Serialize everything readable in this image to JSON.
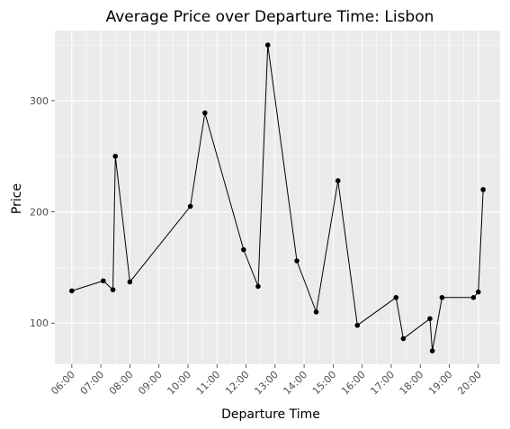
{
  "chart_data": {
    "type": "line",
    "title": "Average Price over Departure Time: Lisbon",
    "xlabel": "Departure Time",
    "ylabel": "Price",
    "xlim": [
      "05:25",
      "20:45"
    ],
    "ylim": [
      63,
      363
    ],
    "x_ticks": [
      "06:00",
      "07:00",
      "08:00",
      "09:00",
      "10:00",
      "11:00",
      "12:00",
      "13:00",
      "14:00",
      "15:00",
      "16:00",
      "17:00",
      "18:00",
      "19:00",
      "20:00"
    ],
    "y_ticks": [
      100,
      200,
      300
    ],
    "grid": true,
    "legend": "none",
    "series": [
      {
        "x": [
          "06:00",
          "07:05",
          "07:25",
          "07:30",
          "08:00",
          "10:05",
          "10:35",
          "11:55",
          "12:25",
          "12:45",
          "13:45",
          "14:25",
          "15:10",
          "15:50",
          "17:10",
          "17:25",
          "18:20",
          "18:25",
          "18:45",
          "19:50",
          "20:00",
          "20:10"
        ],
        "values": [
          129,
          138,
          130,
          250,
          137,
          205,
          289,
          166,
          133,
          350,
          156,
          110,
          228,
          98,
          123,
          86,
          104,
          75,
          123,
          123,
          128,
          220
        ]
      }
    ]
  },
  "colors": {
    "panel": "#ebebeb",
    "grid_major": "#ffffff",
    "line": "#000000",
    "point": "#000000",
    "tick_text": "#4d4d4d"
  }
}
